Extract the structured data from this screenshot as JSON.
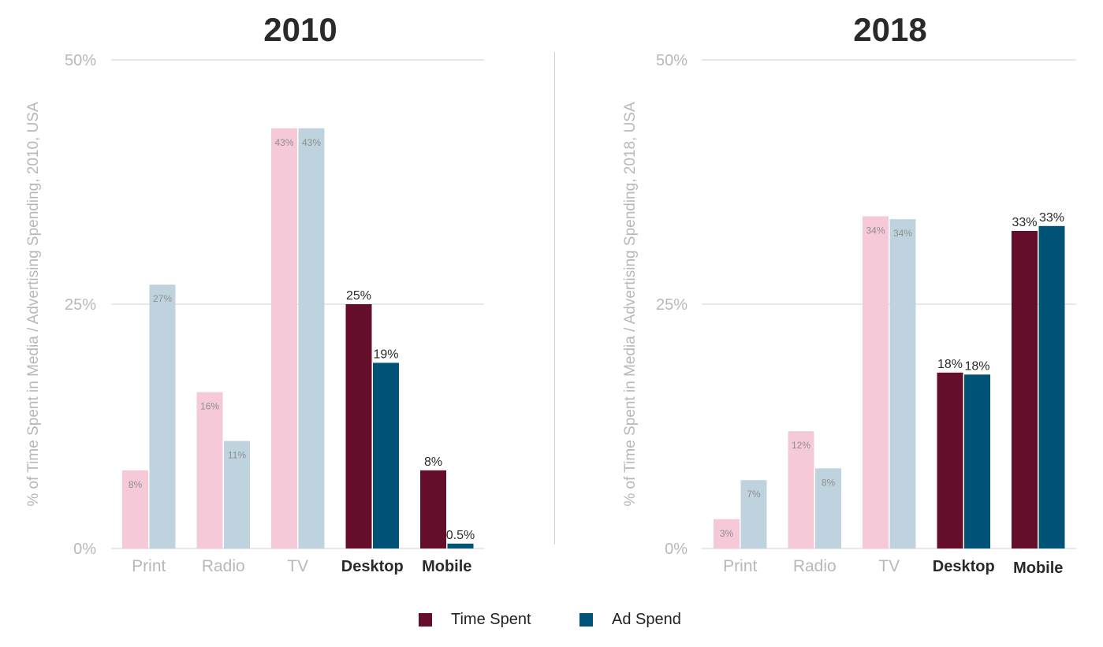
{
  "colors": {
    "time_spent": "#650e2b",
    "ad_spend": "#005377",
    "time_spent_faded": "#f6c9d8",
    "ad_spend_faded": "#bfd3de",
    "grid": "#d0d0d0",
    "muted_text": "#b8b8b8",
    "dark_text": "#2a2a2a",
    "faded_label": "#8f8f8f"
  },
  "legend": {
    "time_spent_label": "Time Spent",
    "ad_spend_label": "Ad Spend"
  },
  "chart_data": [
    {
      "type": "bar",
      "title": "2010",
      "ylabel": "% of Time Spent in Media / Advertising Spending, 2010, USA",
      "ylim": [
        0,
        50
      ],
      "yticks": [
        "0%",
        "25%",
        "50%"
      ],
      "categories": [
        "Print",
        "Radio",
        "TV",
        "Desktop",
        "Mobile"
      ],
      "highlighted": [
        "Desktop",
        "Mobile"
      ],
      "grid": true,
      "legend_position": "bottom",
      "series": [
        {
          "name": "Time Spent",
          "values": [
            8,
            16,
            43,
            25,
            8
          ],
          "labels": [
            "8%",
            "16%",
            "43%",
            "25%",
            "8%"
          ]
        },
        {
          "name": "Ad Spend",
          "values": [
            27,
            11,
            43,
            19,
            0.5
          ],
          "labels": [
            "27%",
            "11%",
            "43%",
            "19%",
            "0.5%"
          ]
        }
      ]
    },
    {
      "type": "bar",
      "title": "2018",
      "ylabel": "% of Time Spent in Media / Advertising Spending, 2018, USA",
      "ylim": [
        0,
        50
      ],
      "yticks": [
        "0%",
        "25%",
        "50%"
      ],
      "categories": [
        "Print",
        "Radio",
        "TV",
        "Desktop",
        "Mobile"
      ],
      "highlighted": [
        "Desktop",
        "Mobile"
      ],
      "grid": true,
      "legend_position": "bottom",
      "series": [
        {
          "name": "Time Spent",
          "values": [
            3,
            12,
            34,
            18,
            32.5
          ],
          "labels": [
            "3%",
            "12%",
            "34%",
            "18%",
            "33%"
          ]
        },
        {
          "name": "Ad Spend",
          "values": [
            7,
            8.2,
            33.7,
            17.8,
            33
          ],
          "labels": [
            "7%",
            "8%",
            "34%",
            "18%",
            "33%"
          ]
        }
      ]
    }
  ]
}
